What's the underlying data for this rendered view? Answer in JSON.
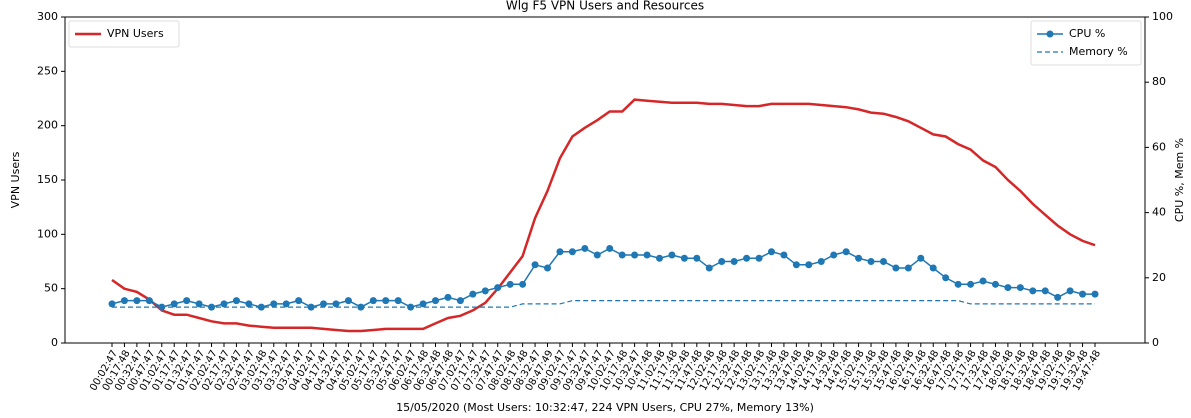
{
  "chart_data": {
    "type": "line",
    "title": "Wlg F5 VPN Users and Resources",
    "xlabel": "15/05/2020 (Most Users: 10:32:47, 224 VPN Users, CPU 27%, Memory 13%)",
    "ylabel": "VPN Users",
    "y2label": "CPU %, Mem %",
    "categories": [
      "00:02:47",
      "00:17:48",
      "00:32:47",
      "00:47:47",
      "01:02:47",
      "01:17:47",
      "01:32:47",
      "01:47:47",
      "02:02:47",
      "02:17:47",
      "02:32:47",
      "02:47:47",
      "03:02:48",
      "03:17:47",
      "03:32:47",
      "03:47:47",
      "04:02:47",
      "04:17:47",
      "04:32:47",
      "04:47:47",
      "05:02:47",
      "05:17:47",
      "05:32:47",
      "05:47:47",
      "06:02:47",
      "06:17:48",
      "06:32:48",
      "06:47:48",
      "07:02:47",
      "07:17:47",
      "07:32:47",
      "07:47:47",
      "08:02:48",
      "08:17:48",
      "08:32:47",
      "08:47:49",
      "09:02:47",
      "09:17:47",
      "09:32:47",
      "09:47:47",
      "10:02:47",
      "10:17:48",
      "10:32:47",
      "10:47:48",
      "11:02:48",
      "11:17:48",
      "11:32:48",
      "11:47:48",
      "12:02:48",
      "12:17:48",
      "12:32:48",
      "12:47:48",
      "13:02:48",
      "13:17:48",
      "13:32:48",
      "13:47:48",
      "14:02:48",
      "14:17:48",
      "14:32:48",
      "14:47:48",
      "15:02:48",
      "15:17:48",
      "15:32:48",
      "15:47:48",
      "16:02:48",
      "16:17:48",
      "16:32:48",
      "16:47:48",
      "17:02:48",
      "17:17:48",
      "17:32:48",
      "17:47:48",
      "18:02:48",
      "18:17:48",
      "18:32:48",
      "18:47:48",
      "19:02:48",
      "19:17:48",
      "19:32:48",
      "19:47:48"
    ],
    "series": [
      {
        "name": "VPN Users",
        "color": "#d62728",
        "axis": "y",
        "legend": "upper left",
        "values": [
          58,
          50,
          47,
          40,
          30,
          26,
          26,
          23,
          20,
          18,
          18,
          16,
          15,
          14,
          14,
          14,
          14,
          13,
          12,
          11,
          11,
          12,
          13,
          13,
          13,
          13,
          18,
          23,
          25,
          30,
          37,
          50,
          65,
          80,
          115,
          140,
          170,
          190,
          198,
          205,
          213,
          213,
          224,
          223,
          222,
          221,
          221,
          221,
          220,
          220,
          219,
          218,
          218,
          220,
          220,
          220,
          220,
          219,
          218,
          217,
          215,
          212,
          211,
          208,
          204,
          198,
          192,
          190,
          183,
          178,
          168,
          162,
          150,
          140,
          128,
          118,
          108,
          100,
          94,
          90
        ]
      },
      {
        "name": "CPU %",
        "color": "#1f77b4",
        "axis": "y2",
        "marker": "circle",
        "legend": "upper right",
        "values": [
          12,
          13,
          13,
          13,
          11,
          12,
          13,
          12,
          11,
          12,
          13,
          12,
          11,
          12,
          12,
          13,
          11,
          12,
          12,
          13,
          11,
          13,
          13,
          13,
          11,
          12,
          13,
          14,
          13,
          15,
          16,
          17,
          18,
          18,
          24,
          23,
          28,
          28,
          29,
          27,
          29,
          27,
          27,
          27,
          26,
          27,
          26,
          26,
          23,
          25,
          25,
          26,
          26,
          28,
          27,
          24,
          24,
          25,
          27,
          28,
          26,
          25,
          25,
          23,
          23,
          26,
          23,
          20,
          18,
          18,
          19,
          18,
          17,
          17,
          16,
          16,
          14,
          16,
          15,
          15
        ]
      },
      {
        "name": "Memory %",
        "color": "#1f77b4",
        "axis": "y2",
        "dashed": true,
        "legend": "upper right",
        "values": [
          11,
          11,
          11,
          11,
          11,
          11,
          11,
          11,
          11,
          11,
          11,
          11,
          11,
          11,
          11,
          11,
          11,
          11,
          11,
          11,
          11,
          11,
          11,
          11,
          11,
          11,
          11,
          11,
          11,
          11,
          11,
          11,
          11,
          12,
          12,
          12,
          12,
          13,
          13,
          13,
          13,
          13,
          13,
          13,
          13,
          13,
          13,
          13,
          13,
          13,
          13,
          13,
          13,
          13,
          13,
          13,
          13,
          13,
          13,
          13,
          13,
          13,
          13,
          13,
          13,
          13,
          13,
          13,
          13,
          12,
          12,
          12,
          12,
          12,
          12,
          12,
          12,
          12,
          12,
          12
        ]
      }
    ],
    "ylim": [
      0,
      300
    ],
    "yticks": [
      0,
      50,
      100,
      150,
      200,
      250,
      300
    ],
    "ycolor": "#d62728",
    "y2lim": [
      0,
      100
    ],
    "y2ticks": [
      0,
      20,
      40,
      60,
      80,
      100
    ],
    "y2color": "#1f77b4"
  }
}
